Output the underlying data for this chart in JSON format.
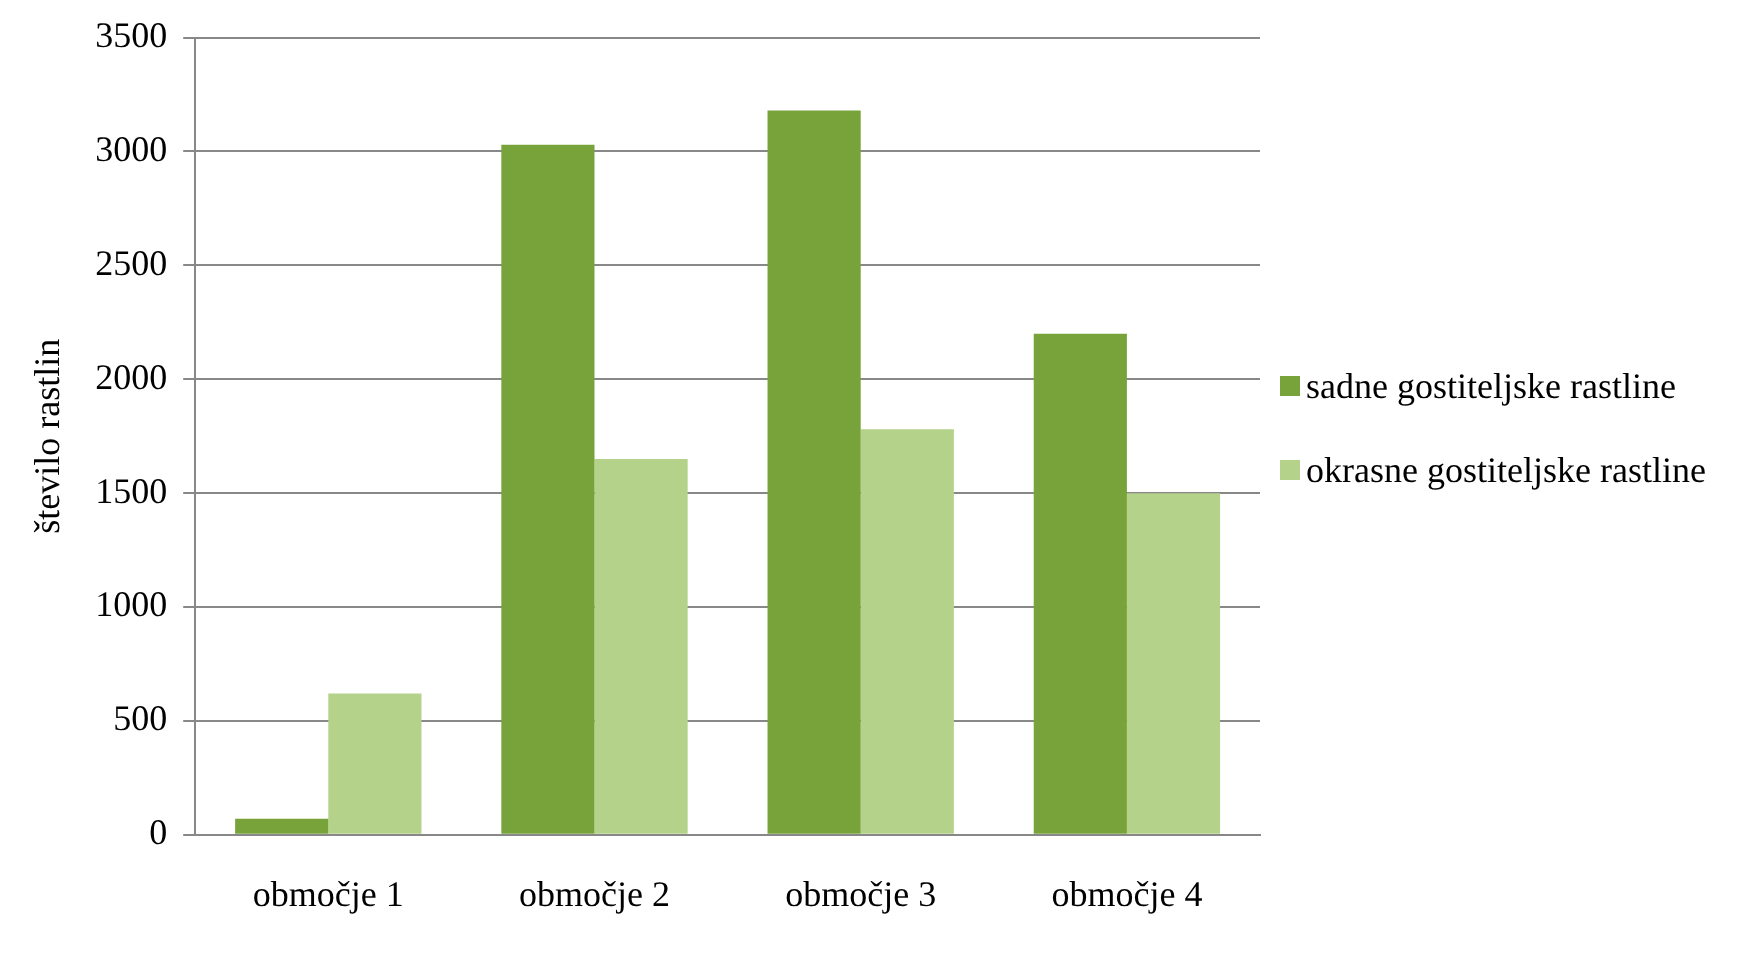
{
  "chart_data": {
    "type": "bar",
    "ylabel": "število rastlin",
    "categories": [
      "območje 1",
      "območje 2",
      "območje 3",
      "območje 4"
    ],
    "series": [
      {
        "name": "sadne gostiteljske rastline",
        "color": "#77a33a",
        "values": [
          70,
          3030,
          3180,
          2200
        ]
      },
      {
        "name": "okrasne gostiteljske rastline",
        "color": "#b5d28a",
        "values": [
          620,
          1650,
          1780,
          1500
        ]
      }
    ],
    "ylim": [
      0,
      3500
    ],
    "yticks": [
      0,
      500,
      1000,
      1500,
      2000,
      2500,
      3000,
      3500
    ],
    "grid": "y",
    "legend": "right"
  }
}
